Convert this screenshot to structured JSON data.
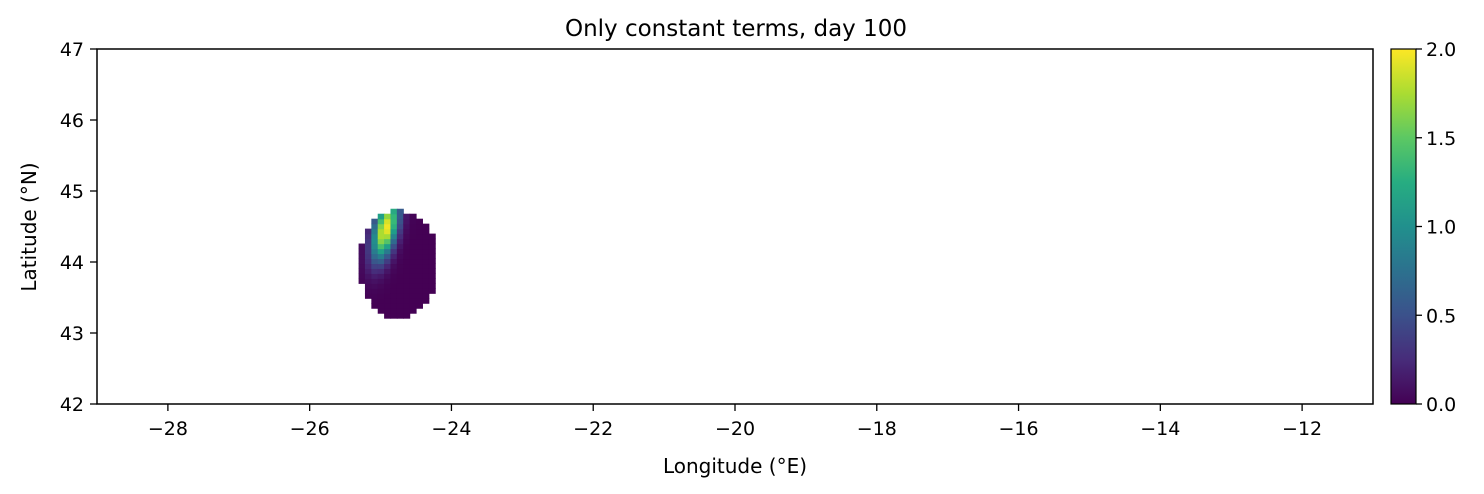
{
  "chart_data": {
    "type": "heatmap",
    "title": "Only constant terms, day 100",
    "xlabel": "Longitude (°E)",
    "ylabel": "Latitude (°N)",
    "xlim": [
      -29,
      -11
    ],
    "ylim": [
      42,
      47
    ],
    "x_ticks": [
      -28,
      -26,
      -24,
      -22,
      -20,
      -18,
      -16,
      -14,
      -12
    ],
    "x_tick_labels": [
      "−28",
      "−26",
      "−24",
      "−22",
      "−20",
      "−18",
      "−16",
      "−14",
      "−12"
    ],
    "y_ticks": [
      42,
      43,
      44,
      45,
      46,
      47
    ],
    "y_tick_labels": [
      "42",
      "43",
      "44",
      "45",
      "46",
      "47"
    ],
    "grid": false,
    "colormap": "viridis",
    "colorbar": {
      "range": [
        0.0,
        2.0
      ],
      "ticks": [
        0.0,
        0.5,
        1.0,
        1.5,
        2.0
      ],
      "tick_labels": [
        "0.0",
        "0.5",
        "1.0",
        "1.5",
        "2.0"
      ]
    },
    "blob": {
      "center_lon": -24.75,
      "center_lat": 43.97,
      "half_width_lon": 0.56,
      "half_height_lat": 0.76,
      "peak_lon": -24.93,
      "peak_lat": 44.47,
      "peak_value": 2.0
    }
  }
}
